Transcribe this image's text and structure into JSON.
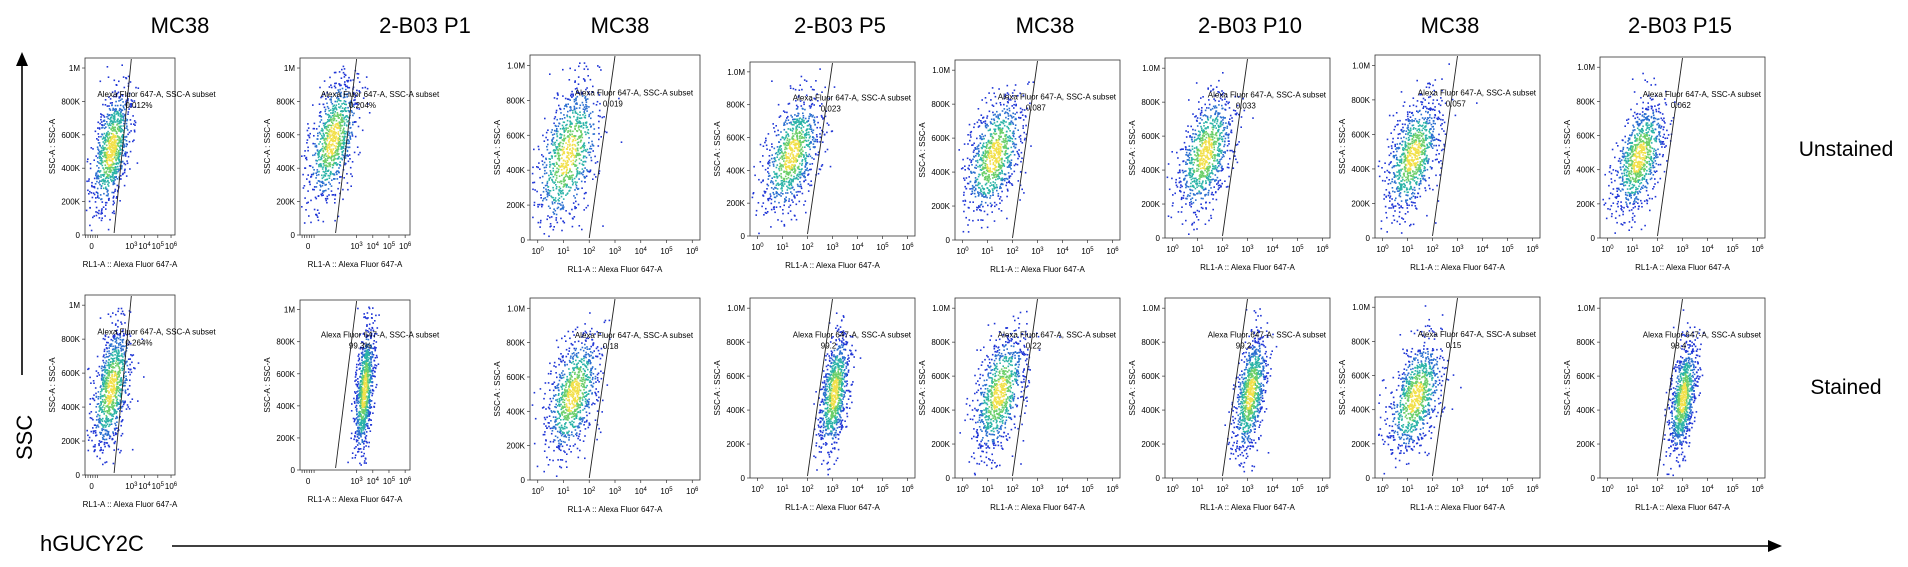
{
  "columns": [
    {
      "title": "MC38"
    },
    {
      "title": "2-B03   P1"
    },
    {
      "title": "MC38"
    },
    {
      "title": "2-B03   P5"
    },
    {
      "title": "MC38"
    },
    {
      "title": "2-B03   P10"
    },
    {
      "title": "MC38"
    },
    {
      "title": "2-B03    P15"
    }
  ],
  "row_labels": [
    "Unstained",
    "Stained"
  ],
  "y_axis_label": "SSC",
  "x_axis_label": "hGUCY2C",
  "colors": {
    "ink": "#000000",
    "low_density": "#1f35d6",
    "mid_density": "#2bb3a7",
    "high_density": "#f2e04a"
  },
  "chart_data": {
    "type": "scatter",
    "plot_kind": "flow-cytometry density dot plot",
    "xlabel": "RL1-A :: Alexa Fluor   647-A",
    "ylabel": "SSC-A :: SSC-A",
    "y_ticks": [
      "0",
      "200K",
      "400K",
      "600K",
      "800K",
      "1M"
    ],
    "y_ticks_alt": [
      "0",
      "200K",
      "400K",
      "600K",
      "800K",
      "1.0M"
    ],
    "x_ticks_linear_zero": [
      "0",
      "10^3",
      "10^4",
      "10^5",
      "10^6"
    ],
    "x_ticks_log": [
      "10^0",
      "10^1",
      "10^2",
      "10^3",
      "10^4",
      "10^5",
      "10^6"
    ],
    "gate_name": "Alexa Fluor    647-A, SSC-A subset",
    "panels": [
      {
        "row": "Unstained",
        "column": 1,
        "title": "MC38",
        "x_axis": "linear-zero",
        "y_ticks": "1M",
        "ylabel": "SSC-A : SSC-A",
        "gate_percent": "0.012%",
        "cells_x": [
          0.1,
          2.8
        ],
        "cells_y": [
          150000,
          880000
        ]
      },
      {
        "row": "Unstained",
        "column": 2,
        "title": "2-B03 P1",
        "x_axis": "linear-zero",
        "y_ticks": "1M",
        "ylabel": "SSC-A : SSC-A",
        "gate_percent": "0.204%",
        "cells_x": [
          0.1,
          2.9
        ],
        "cells_y": [
          200000,
          950000
        ]
      },
      {
        "row": "Unstained",
        "column": 3,
        "title": "MC38",
        "x_axis": "log",
        "y_ticks": "1.0M",
        "ylabel": "SSC-A : SSC-A",
        "gate_percent": "0.019",
        "cells_x": [
          0.0,
          2.3
        ],
        "cells_y": [
          80000,
          900000
        ]
      },
      {
        "row": "Unstained",
        "column": 4,
        "title": "2-B03 P5",
        "x_axis": "log",
        "y_ticks": "1.0M",
        "ylabel": "SSC-A : SSC-A",
        "gate_percent": "0.023",
        "cells_x": [
          0.3,
          2.4
        ],
        "cells_y": [
          150000,
          850000
        ]
      },
      {
        "row": "Unstained",
        "column": 5,
        "title": "MC38",
        "x_axis": "log",
        "y_ticks": "1.0M",
        "ylabel": "SSC-A : SSC-A",
        "gate_percent": "0.087",
        "cells_x": [
          0.2,
          2.3
        ],
        "cells_y": [
          150000,
          850000
        ]
      },
      {
        "row": "Unstained",
        "column": 6,
        "title": "2-B03 P10",
        "x_axis": "log",
        "y_ticks": "1.0M",
        "ylabel": "SSC-A : SSC-A",
        "gate_percent": "0.033",
        "cells_x": [
          0.3,
          2.3
        ],
        "cells_y": [
          150000,
          850000
        ]
      },
      {
        "row": "Unstained",
        "column": 7,
        "title": "MC38",
        "x_axis": "log",
        "y_ticks": "1.0M",
        "ylabel": "SSC-A : SSC-A",
        "gate_percent": "0.057",
        "cells_x": [
          0.2,
          2.2
        ],
        "cells_y": [
          150000,
          800000
        ]
      },
      {
        "row": "Unstained",
        "column": 8,
        "title": "2-B03 P15",
        "x_axis": "log",
        "y_ticks": "1.0M",
        "ylabel": "SSC-A : SSC-A",
        "gate_percent": "0.062",
        "cells_x": [
          0.3,
          2.2
        ],
        "cells_y": [
          150000,
          800000
        ]
      },
      {
        "row": "Stained",
        "column": 1,
        "title": "MC38",
        "x_axis": "linear-zero",
        "y_ticks": "1M",
        "ylabel": "SSC-A : SSC-A",
        "gate_percent": "0.264%",
        "cells_x": [
          0.1,
          2.8
        ],
        "cells_y": [
          150000,
          880000
        ]
      },
      {
        "row": "Stained",
        "column": 2,
        "title": "2-B03 P1",
        "x_axis": "linear-zero",
        "y_ticks": "1M",
        "ylabel": "SSC-A : SSC-A",
        "gate_percent": "99.3%",
        "cells_x": [
          2.9,
          4.0
        ],
        "cells_y": [
          100000,
          900000
        ]
      },
      {
        "row": "Stained",
        "column": 3,
        "title": "MC38",
        "x_axis": "log",
        "y_ticks": "1.0M",
        "ylabel": "SSC-A : SSC-A",
        "gate_percent": "0.18",
        "cells_x": [
          0.4,
          2.3
        ],
        "cells_y": [
          150000,
          850000
        ]
      },
      {
        "row": "Stained",
        "column": 4,
        "title": "2-B03 P5",
        "x_axis": "log",
        "y_ticks": "1.0M",
        "ylabel": "SSC-A : SSC-A",
        "gate_percent": "99.2",
        "cells_x": [
          2.5,
          3.6
        ],
        "cells_y": [
          150000,
          850000
        ]
      },
      {
        "row": "Stained",
        "column": 5,
        "title": "MC38",
        "x_axis": "log",
        "y_ticks": "1.0M",
        "ylabel": "SSC-A : SSC-A",
        "gate_percent": "0.22",
        "cells_x": [
          0.5,
          2.4
        ],
        "cells_y": [
          150000,
          850000
        ]
      },
      {
        "row": "Stained",
        "column": 6,
        "title": "2-B03 P10",
        "x_axis": "log",
        "y_ticks": "1.0M",
        "ylabel": "SSC-A : SSC-A",
        "gate_percent": "99.2",
        "cells_x": [
          2.5,
          3.7
        ],
        "cells_y": [
          150000,
          850000
        ]
      },
      {
        "row": "Stained",
        "column": 7,
        "title": "MC38",
        "x_axis": "log",
        "y_ticks": "1.0M",
        "ylabel": "SSC-A : SSC-A",
        "gate_percent": "0.15",
        "cells_x": [
          0.3,
          2.3
        ],
        "cells_y": [
          150000,
          800000
        ]
      },
      {
        "row": "Stained",
        "column": 8,
        "title": "2-B03 P15",
        "x_axis": "log",
        "y_ticks": "1.0M",
        "ylabel": "SSC-A : SSC-A",
        "gate_percent": "98.4",
        "cells_x": [
          2.5,
          3.5
        ],
        "cells_y": [
          150000,
          800000
        ]
      }
    ]
  }
}
